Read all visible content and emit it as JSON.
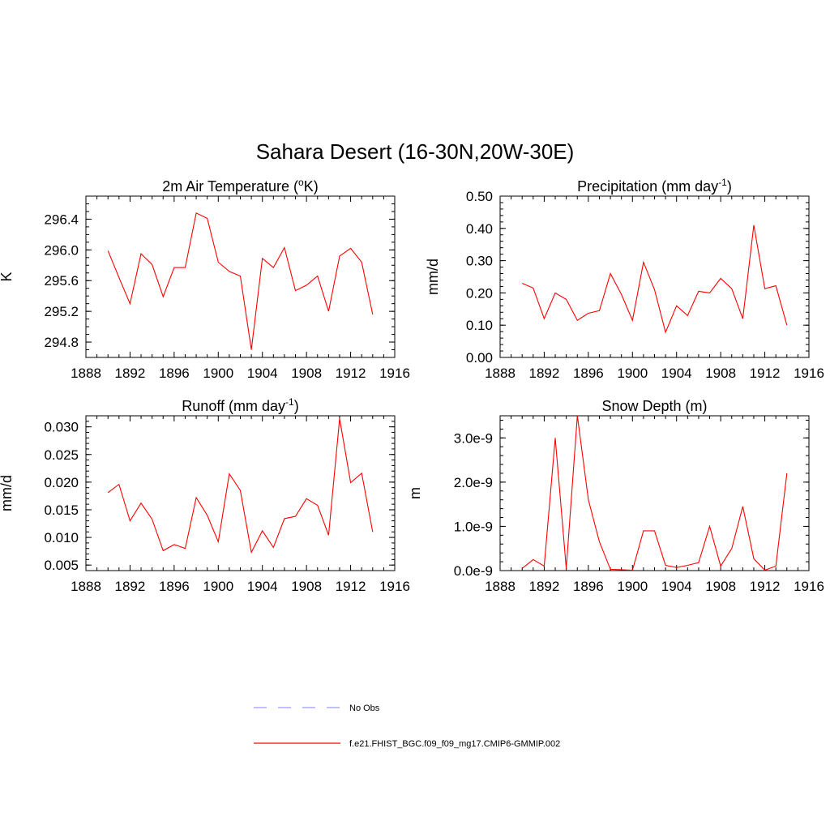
{
  "figure_title": "Sahara Desert (16-30N,20W-30E)",
  "legend": [
    {
      "label": "No Obs",
      "color": "#9999ff",
      "dashed": true
    },
    {
      "label": "f.e21.FHIST_BGC.f09_f09_mg17.CMIP6-GMMIP.002",
      "color": "#ff0000",
      "dashed": false
    }
  ],
  "chart_data": [
    {
      "type": "line",
      "title": "2m Air Temperature (",
      "title_sup": "o",
      "title_after": "K)",
      "xlabel": "",
      "ylabel": "K",
      "xlim": [
        1888,
        1916
      ],
      "ylim": [
        294.6,
        296.7
      ],
      "xticks": [
        1888,
        1892,
        1896,
        1900,
        1904,
        1908,
        1912,
        1916
      ],
      "xtick_labels": [
        "1888",
        "1892",
        "1896",
        "1900",
        "1904",
        "1908",
        "1912",
        "1916"
      ],
      "yticks": [
        294.8,
        295.2,
        295.6,
        296.0,
        296.4
      ],
      "ytick_labels": [
        "294.8",
        "295.2",
        "295.6",
        "296.0",
        "296.4"
      ],
      "yminor": 0.1,
      "grid": false,
      "series": [
        {
          "color": "#ff0000",
          "x": [
            1890,
            1891,
            1892,
            1893,
            1894,
            1895,
            1896,
            1897,
            1898,
            1899,
            1900,
            1901,
            1902,
            1903,
            1904,
            1905,
            1906,
            1907,
            1908,
            1909,
            1910,
            1911,
            1912,
            1913,
            1914
          ],
          "values": [
            295.99,
            295.64,
            295.3,
            295.95,
            295.81,
            295.39,
            295.77,
            295.77,
            296.48,
            296.41,
            295.84,
            295.72,
            295.66,
            294.7,
            295.89,
            295.77,
            296.03,
            295.47,
            295.54,
            295.66,
            295.2,
            295.92,
            296.02,
            295.84,
            295.16
          ]
        }
      ]
    },
    {
      "type": "line",
      "title": "Precipitation (mm day",
      "title_sup": "-1",
      "title_after": ")",
      "xlabel": "",
      "ylabel": "mm/d",
      "xlim": [
        1888,
        1916
      ],
      "ylim": [
        0.0,
        0.5
      ],
      "xticks": [
        1888,
        1892,
        1896,
        1900,
        1904,
        1908,
        1912,
        1916
      ],
      "xtick_labels": [
        "1888",
        "1892",
        "1896",
        "1900",
        "1904",
        "1908",
        "1912",
        "1916"
      ],
      "yticks": [
        0.0,
        0.1,
        0.2,
        0.3,
        0.4,
        0.5
      ],
      "ytick_labels": [
        "0.00",
        "0.10",
        "0.20",
        "0.30",
        "0.40",
        "0.50"
      ],
      "yminor": 0.02,
      "grid": false,
      "series": [
        {
          "color": "#ff0000",
          "x": [
            1890,
            1891,
            1892,
            1893,
            1894,
            1895,
            1896,
            1897,
            1898,
            1899,
            1900,
            1901,
            1902,
            1903,
            1904,
            1905,
            1906,
            1907,
            1908,
            1909,
            1910,
            1911,
            1912,
            1913,
            1914
          ],
          "values": [
            0.23,
            0.215,
            0.12,
            0.2,
            0.18,
            0.115,
            0.137,
            0.145,
            0.26,
            0.195,
            0.115,
            0.295,
            0.21,
            0.078,
            0.16,
            0.13,
            0.205,
            0.2,
            0.245,
            0.213,
            0.12,
            0.41,
            0.213,
            0.222,
            0.1
          ]
        }
      ]
    },
    {
      "type": "line",
      "title": "Runoff (mm day",
      "title_sup": "-1",
      "title_after": ")",
      "xlabel": "",
      "ylabel": "mm/d",
      "xlim": [
        1888,
        1916
      ],
      "ylim": [
        0.004,
        0.032
      ],
      "xticks": [
        1888,
        1892,
        1896,
        1900,
        1904,
        1908,
        1912,
        1916
      ],
      "xtick_labels": [
        "1888",
        "1892",
        "1896",
        "1900",
        "1904",
        "1908",
        "1912",
        "1916"
      ],
      "yticks": [
        0.005,
        0.01,
        0.015,
        0.02,
        0.025,
        0.03
      ],
      "ytick_labels": [
        "0.005",
        "0.010",
        "0.015",
        "0.020",
        "0.025",
        "0.030"
      ],
      "yminor": 0.001,
      "grid": false,
      "series": [
        {
          "color": "#ff0000",
          "x": [
            1890,
            1891,
            1892,
            1893,
            1894,
            1895,
            1896,
            1897,
            1898,
            1899,
            1900,
            1901,
            1902,
            1903,
            1904,
            1905,
            1906,
            1907,
            1908,
            1909,
            1910,
            1911,
            1912,
            1913,
            1914
          ],
          "values": [
            0.0181,
            0.0196,
            0.013,
            0.0162,
            0.0133,
            0.0076,
            0.0087,
            0.008,
            0.0172,
            0.014,
            0.0092,
            0.0215,
            0.0185,
            0.0073,
            0.0112,
            0.0082,
            0.0134,
            0.0138,
            0.017,
            0.0158,
            0.0104,
            0.0315,
            0.0199,
            0.0216,
            0.011
          ]
        }
      ]
    },
    {
      "type": "line",
      "title": "Snow Depth (m)",
      "title_sup": "",
      "title_after": "",
      "xlabel": "",
      "ylabel": "m",
      "xlim": [
        1888,
        1916
      ],
      "ylim": [
        0.0,
        3.5e-09
      ],
      "xticks": [
        1888,
        1892,
        1896,
        1900,
        1904,
        1908,
        1912,
        1916
      ],
      "xtick_labels": [
        "1888",
        "1892",
        "1896",
        "1900",
        "1904",
        "1908",
        "1912",
        "1916"
      ],
      "yticks": [
        0.0,
        1e-09,
        2e-09,
        3e-09
      ],
      "ytick_labels": [
        "0.0e-9",
        "1.0e-9",
        "2.0e-9",
        "3.0e-9"
      ],
      "yminor": 2e-10,
      "grid": false,
      "series": [
        {
          "color": "#ff0000",
          "x": [
            1890,
            1891,
            1892,
            1893,
            1894,
            1895,
            1896,
            1897,
            1898,
            1899,
            1900,
            1901,
            1902,
            1903,
            1904,
            1905,
            1906,
            1907,
            1908,
            1909,
            1910,
            1911,
            1912,
            1913,
            1914
          ],
          "values": [
            5e-11,
            2.5e-10,
            1e-10,
            3e-09,
            5e-11,
            3.5e-09,
            1.6e-09,
            6.5e-10,
            3e-11,
            2e-11,
            1e-11,
            9e-10,
            9e-10,
            1.2e-10,
            7e-11,
            1.2e-10,
            1.8e-10,
            1e-09,
            1e-10,
            5e-10,
            1.45e-09,
            2.7e-10,
            1e-11,
            1e-10,
            2.2e-09
          ]
        }
      ]
    }
  ]
}
